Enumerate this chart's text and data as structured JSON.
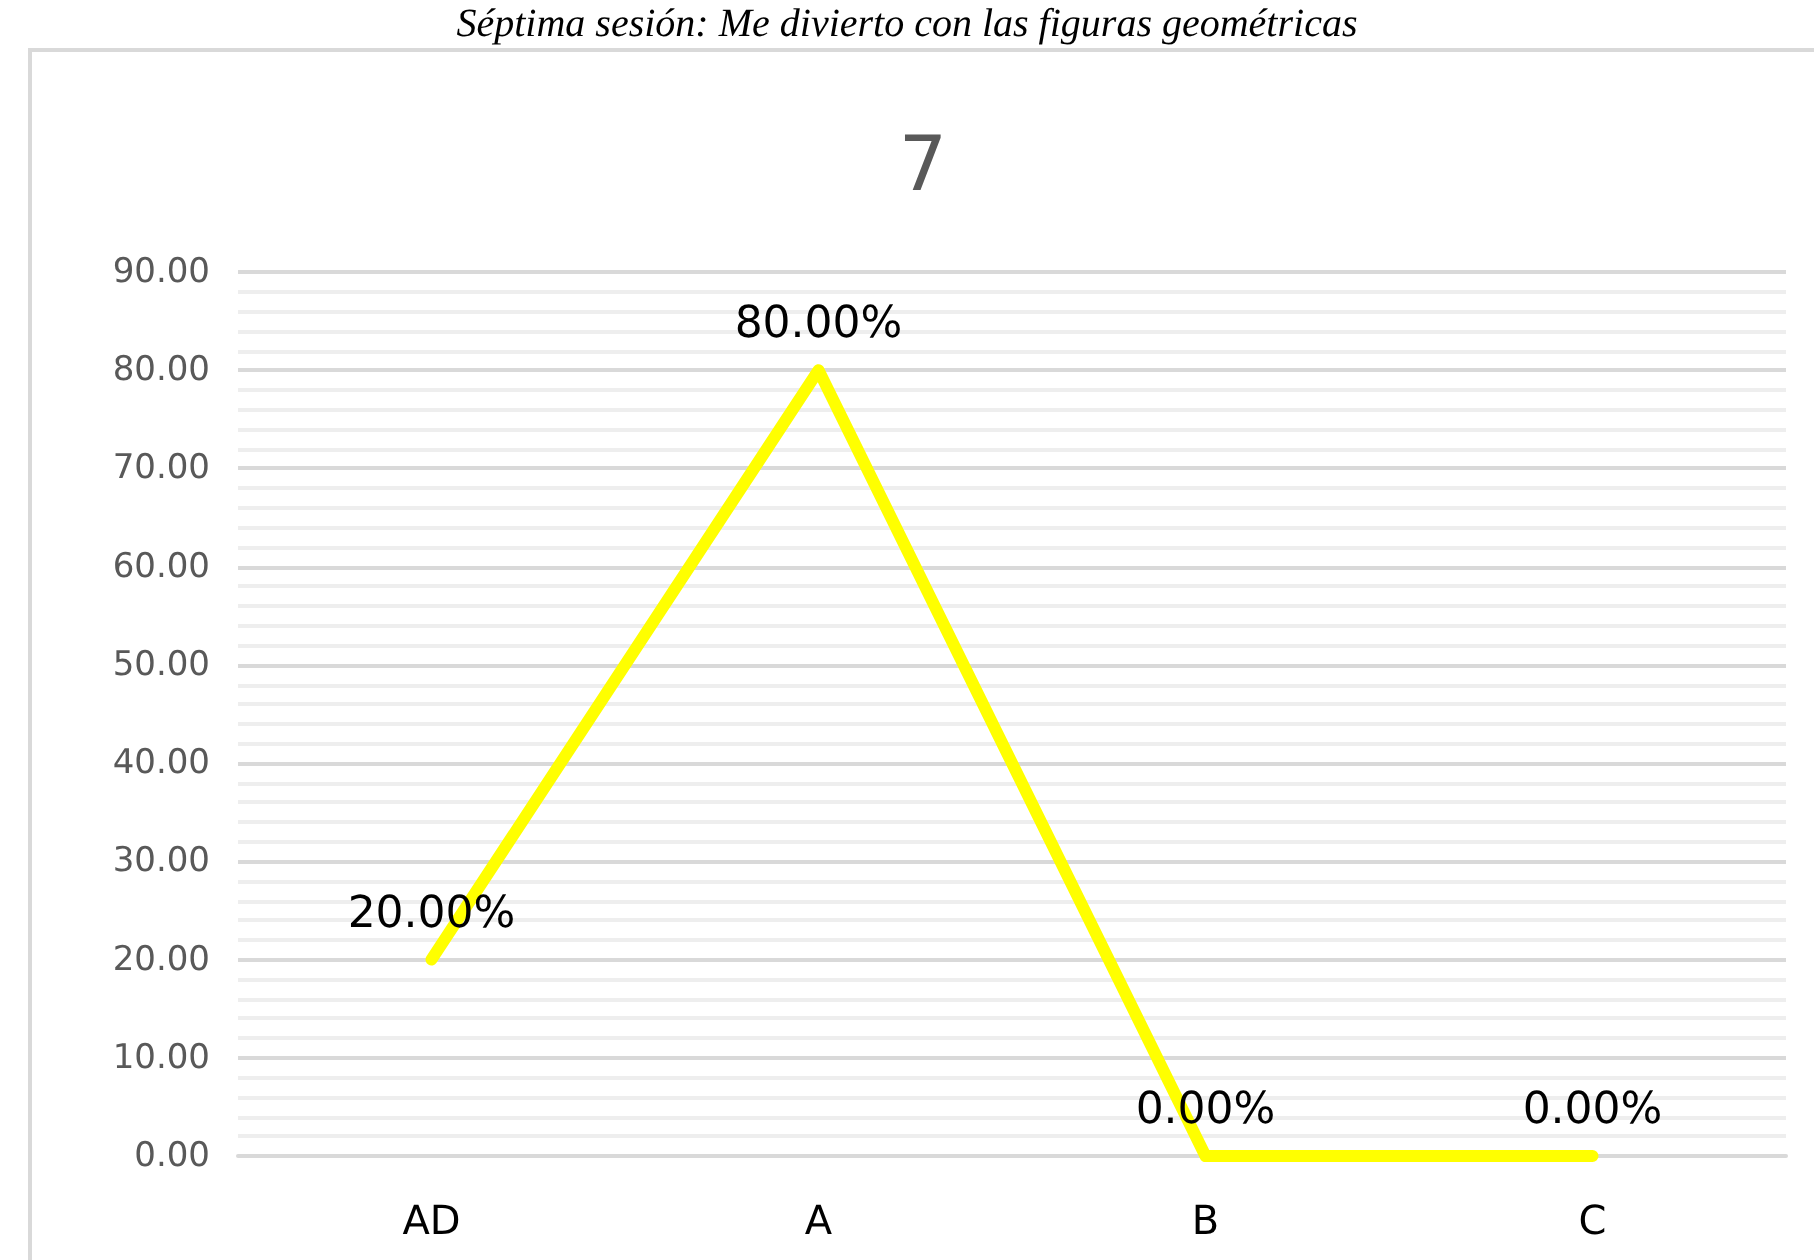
{
  "chart_data": {
    "type": "line",
    "title": "7",
    "annotations": [
      "Séptima sesión: Me divierto con las figuras geométricas"
    ],
    "categories": [
      "AD",
      "A",
      "B",
      "C"
    ],
    "series": [
      {
        "color": "#ffff00",
        "values": [
          20,
          80,
          0,
          0
        ],
        "value_labels": [
          "20.00%",
          "80.00%",
          "0.00%",
          "0.00%"
        ]
      }
    ],
    "ylim": [
      0,
      90
    ],
    "yticks": [
      {
        "value": 0,
        "label": "0.00"
      },
      {
        "value": 10,
        "label": "10.00"
      },
      {
        "value": 20,
        "label": "20.00"
      },
      {
        "value": 30,
        "label": "30.00"
      },
      {
        "value": 40,
        "label": "40.00"
      },
      {
        "value": 50,
        "label": "50.00"
      },
      {
        "value": 60,
        "label": "60.00"
      },
      {
        "value": 70,
        "label": "70.00"
      },
      {
        "value": 80,
        "label": "80.00"
      },
      {
        "value": 90,
        "label": "90.00"
      }
    ],
    "grid": true,
    "marker": "none",
    "line_style": "solid"
  }
}
